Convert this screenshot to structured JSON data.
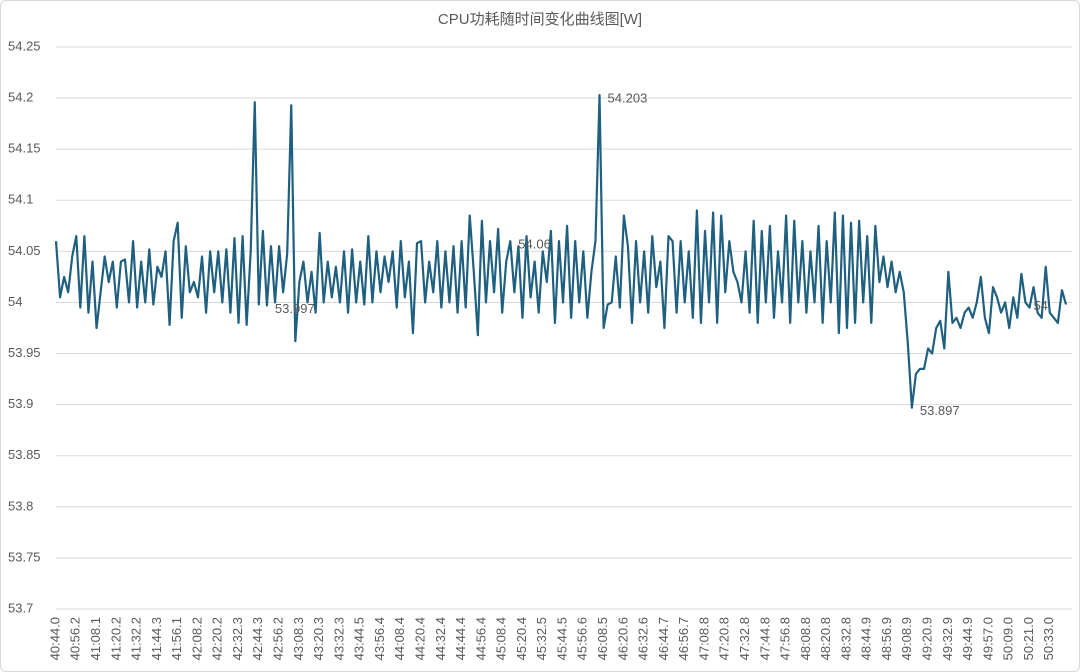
{
  "chart_data": {
    "type": "line",
    "title": "CPU功耗随时间变化曲线图[W]",
    "categories": [
      "40:44.0",
      null,
      null,
      null,
      null,
      "40:56.2",
      null,
      null,
      null,
      null,
      "41:08.1",
      null,
      null,
      null,
      null,
      "41:20.2",
      null,
      null,
      null,
      null,
      "41:32.2",
      null,
      null,
      null,
      null,
      "41:44.3",
      null,
      null,
      null,
      null,
      "41:56.1",
      null,
      null,
      null,
      null,
      "42:08.2",
      null,
      null,
      null,
      null,
      "42:20.2",
      null,
      null,
      null,
      null,
      "42:32.3",
      null,
      null,
      null,
      null,
      "42:44.3",
      null,
      null,
      null,
      null,
      "42:56.2",
      null,
      null,
      null,
      null,
      "43:08.3",
      null,
      null,
      null,
      null,
      "43:20.3",
      null,
      null,
      null,
      null,
      "43:32.3",
      null,
      null,
      null,
      null,
      "43:44.5",
      null,
      null,
      null,
      null,
      "43:56.4",
      null,
      null,
      null,
      null,
      "44:08.4",
      null,
      null,
      null,
      null,
      "44:20.4",
      null,
      null,
      null,
      null,
      "44:32.4",
      null,
      null,
      null,
      null,
      "44:44.4",
      null,
      null,
      null,
      null,
      "44:56.4",
      null,
      null,
      null,
      null,
      "45:08.4",
      null,
      null,
      null,
      null,
      "45:20.4",
      null,
      null,
      null,
      null,
      "45:32.5",
      null,
      null,
      null,
      null,
      "45:44.5",
      null,
      null,
      null,
      null,
      "45:56.6",
      null,
      null,
      null,
      null,
      "46:08.5",
      null,
      null,
      null,
      null,
      "46:20.6",
      null,
      null,
      null,
      null,
      "46:32.6",
      null,
      null,
      null,
      null,
      "46:44.7",
      null,
      null,
      null,
      null,
      "46:56.7",
      null,
      null,
      null,
      null,
      "47:08.8",
      null,
      null,
      null,
      null,
      "47:20.8",
      null,
      null,
      null,
      null,
      "47:32.8",
      null,
      null,
      null,
      null,
      "47:44.8",
      null,
      null,
      null,
      null,
      "47:56.8",
      null,
      null,
      null,
      null,
      "48:08.8",
      null,
      null,
      null,
      null,
      "48:20.8",
      null,
      null,
      null,
      null,
      "48:32.8",
      null,
      null,
      null,
      null,
      "48:44.9",
      null,
      null,
      null,
      null,
      "48:56.9",
      null,
      null,
      null,
      null,
      "49:08.9",
      null,
      null,
      null,
      null,
      "49:20.9",
      null,
      null,
      null,
      null,
      "49:32.9",
      null,
      null,
      null,
      null,
      "49:44.9",
      null,
      null,
      null,
      null,
      "49:57.0",
      null,
      null,
      null,
      null,
      "50:09.0",
      null,
      null,
      null,
      null,
      "50:21.0",
      null,
      null,
      null,
      null,
      "50:33.0",
      null,
      null,
      null,
      null
    ],
    "values": [
      54.06,
      54.005,
      54.025,
      54.01,
      54.045,
      54.065,
      53.995,
      54.065,
      53.99,
      54.04,
      53.975,
      54.01,
      54.045,
      54.02,
      54.04,
      53.995,
      54.04,
      54.042,
      54.0,
      54.06,
      53.995,
      54.04,
      54.0,
      54.052,
      53.998,
      54.035,
      54.025,
      54.05,
      53.978,
      54.06,
      54.078,
      53.985,
      54.055,
      54.01,
      54.02,
      54.005,
      54.045,
      53.99,
      54.05,
      54.01,
      54.05,
      54.0,
      54.052,
      53.99,
      54.063,
      53.98,
      54.065,
      53.978,
      54.05,
      54.196,
      53.998,
      54.07,
      53.997,
      54.055,
      54.0,
      54.055,
      54.01,
      54.048,
      54.193,
      53.962,
      54.02,
      54.04,
      54.0,
      54.03,
      53.99,
      54.068,
      54.0,
      54.04,
      54.005,
      54.035,
      54.0,
      54.05,
      53.99,
      54.052,
      54.0,
      54.04,
      53.998,
      54.065,
      54.0,
      54.05,
      54.01,
      54.045,
      54.02,
      54.05,
      53.995,
      54.06,
      54.005,
      54.04,
      53.97,
      54.058,
      54.06,
      54.0,
      54.04,
      54.01,
      54.06,
      53.995,
      54.05,
      54.0,
      54.055,
      53.99,
      54.06,
      53.995,
      54.085,
      54.03,
      53.968,
      54.08,
      54.0,
      54.06,
      54.01,
      54.072,
      53.99,
      54.04,
      54.06,
      54.01,
      54.055,
      53.985,
      54.065,
      54.005,
      54.04,
      53.99,
      54.05,
      54.02,
      54.07,
      53.98,
      54.06,
      54.0,
      54.075,
      53.985,
      54.06,
      54.0,
      54.05,
      53.985,
      54.03,
      54.06,
      54.203,
      53.975,
      53.998,
      54.0,
      54.045,
      53.995,
      54.085,
      54.055,
      53.98,
      54.06,
      54.0,
      54.05,
      53.99,
      54.065,
      54.015,
      54.04,
      53.975,
      54.065,
      54.06,
      53.99,
      54.06,
      54.0,
      54.05,
      53.985,
      54.09,
      53.98,
      54.07,
      54.0,
      54.088,
      53.98,
      54.085,
      54.01,
      54.06,
      54.03,
      54.02,
      54.0,
      54.05,
      53.99,
      54.08,
      53.98,
      54.07,
      54.0,
      54.075,
      53.985,
      54.05,
      54.0,
      54.085,
      53.98,
      54.08,
      54.0,
      54.06,
      53.99,
      54.05,
      54.0,
      54.075,
      53.98,
      54.06,
      54.0,
      54.088,
      53.97,
      54.085,
      53.975,
      54.078,
      53.98,
      54.08,
      54.0,
      54.065,
      53.98,
      54.075,
      54.02,
      54.045,
      54.015,
      54.04,
      54.01,
      54.03,
      54.01,
      53.96,
      53.897,
      53.93,
      53.935,
      53.935,
      53.955,
      53.95,
      53.975,
      53.982,
      53.955,
      54.03,
      53.98,
      53.985,
      53.975,
      53.99,
      53.995,
      53.985,
      54.0,
      54.025,
      53.985,
      53.97,
      54.015,
      54.005,
      53.99,
      54.0,
      53.975,
      54.005,
      53.985,
      54.028,
      54,
      53.995,
      54.015,
      53.99,
      53.985,
      54.035,
      53.99,
      53.985,
      53.98,
      54.012,
      53.998
    ],
    "value_labels": [
      null,
      null,
      null,
      null,
      null,
      null,
      null,
      null,
      null,
      null,
      null,
      null,
      null,
      null,
      null,
      null,
      null,
      null,
      null,
      null,
      null,
      null,
      null,
      null,
      null,
      null,
      null,
      null,
      null,
      null,
      null,
      null,
      null,
      null,
      null,
      null,
      null,
      null,
      null,
      null,
      null,
      null,
      null,
      null,
      null,
      null,
      null,
      null,
      null,
      null,
      null,
      null,
      "53.997",
      null,
      null,
      null,
      null,
      null,
      null,
      null,
      null,
      null,
      null,
      null,
      null,
      null,
      null,
      null,
      null,
      null,
      null,
      null,
      null,
      null,
      null,
      null,
      null,
      null,
      null,
      null,
      null,
      null,
      null,
      null,
      null,
      null,
      null,
      null,
      null,
      null,
      null,
      null,
      null,
      null,
      null,
      null,
      null,
      null,
      null,
      null,
      null,
      null,
      null,
      null,
      null,
      null,
      null,
      null,
      null,
      null,
      null,
      null,
      "54.06",
      null,
      null,
      null,
      null,
      null,
      null,
      null,
      null,
      null,
      null,
      null,
      null,
      null,
      null,
      null,
      null,
      null,
      null,
      null,
      null,
      null,
      "54.203",
      null,
      null,
      null,
      null,
      null,
      null,
      null,
      null,
      null,
      null,
      null,
      null,
      null,
      null,
      null,
      null,
      null,
      null,
      null,
      null,
      null,
      null,
      null,
      null,
      null,
      null,
      null,
      null,
      null,
      null,
      null,
      null,
      null,
      null,
      null,
      null,
      null,
      null,
      null,
      null,
      null,
      null,
      null,
      null,
      null,
      null,
      null,
      null,
      null,
      null,
      null,
      null,
      null,
      null,
      null,
      null,
      null,
      null,
      null,
      null,
      null,
      null,
      null,
      null,
      null,
      null,
      null,
      null,
      null,
      null,
      null,
      null,
      null,
      null,
      null,
      null,
      "53.897",
      null,
      null,
      null,
      null,
      null,
      null,
      null,
      null,
      null,
      null,
      null,
      null,
      null,
      null,
      null,
      null,
      null,
      null,
      null,
      null,
      null,
      null,
      null,
      null,
      null,
      null,
      null,
      "54",
      null,
      null,
      null,
      null,
      null,
      null,
      null,
      null,
      null,
      null
    ],
    "color": "#1f6080",
    "ylim": [
      53.7,
      54.25
    ],
    "yticks": [
      53.7,
      53.75,
      53.8,
      53.85,
      53.9,
      53.95,
      54,
      54.05,
      54.1,
      54.15,
      54.2,
      54.25
    ],
    "grid": true
  }
}
